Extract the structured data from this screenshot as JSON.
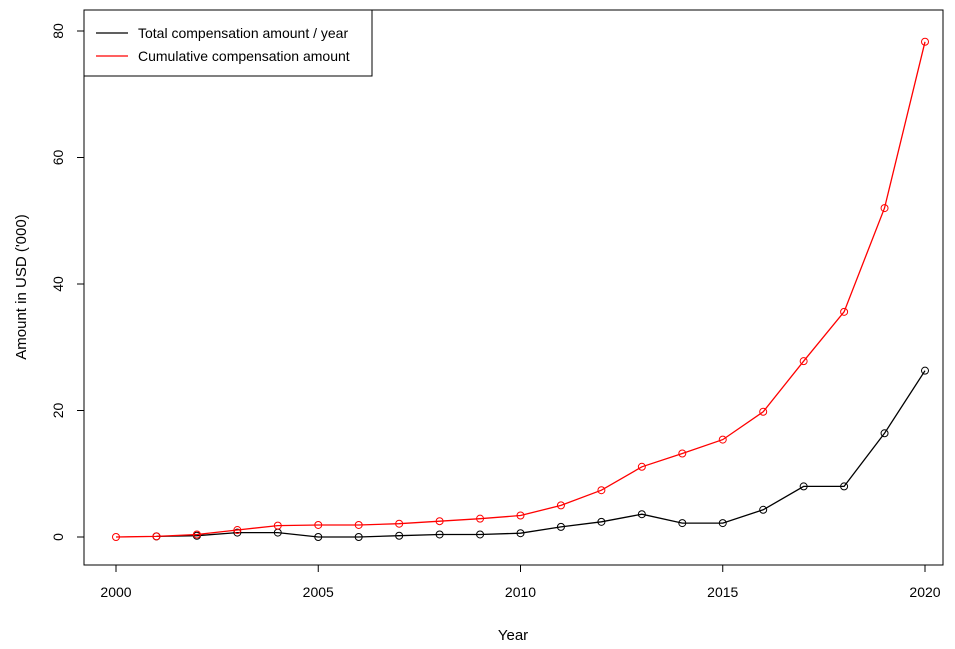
{
  "chart_data": {
    "type": "line",
    "xlabel": "Year",
    "ylabel": "Amount in USD ('000)",
    "xlim": [
      2000,
      2020
    ],
    "ylim": [
      0,
      80
    ],
    "x_ticks": [
      "2000",
      "2005",
      "2010",
      "2015",
      "2020"
    ],
    "y_ticks": [
      "0",
      "20",
      "40",
      "60",
      "80"
    ],
    "grid": false,
    "legend_position": "top-left",
    "series": [
      {
        "name": "Total compensation amount / year",
        "color": "#000000",
        "marker": "open-circle",
        "x": [
          2001,
          2002,
          2003,
          2004,
          2005,
          2006,
          2007,
          2008,
          2009,
          2010,
          2011,
          2012,
          2013,
          2014,
          2015,
          2016,
          2017,
          2018,
          2019,
          2020
        ],
        "y": [
          0.1,
          0.2,
          0.7,
          0.7,
          0.0,
          0.0,
          0.2,
          0.4,
          0.4,
          0.6,
          1.6,
          2.4,
          3.6,
          2.2,
          2.2,
          4.3,
          8.0,
          8.0,
          16.4,
          26.3
        ]
      },
      {
        "name": " Cumulative compensation amount",
        "color": "#ff0000",
        "marker": "open-circle",
        "x": [
          2000,
          2001,
          2002,
          2003,
          2004,
          2005,
          2006,
          2007,
          2008,
          2009,
          2010,
          2011,
          2012,
          2013,
          2014,
          2015,
          2016,
          2017,
          2018,
          2019,
          2020
        ],
        "y": [
          0.0,
          0.1,
          0.4,
          1.1,
          1.8,
          1.9,
          1.9,
          2.1,
          2.5,
          2.9,
          3.4,
          5.0,
          7.4,
          11.1,
          13.2,
          15.4,
          19.8,
          27.8,
          35.6,
          52.0,
          78.3
        ]
      }
    ]
  }
}
